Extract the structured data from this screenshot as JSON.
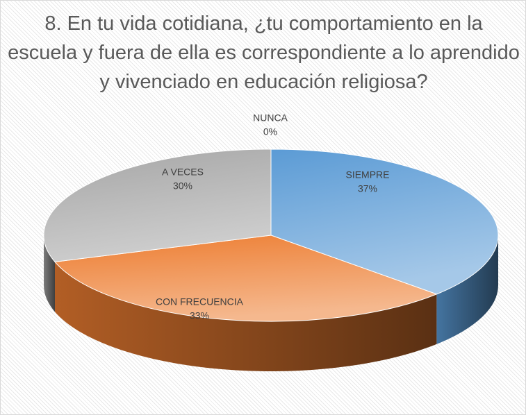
{
  "chart_data": {
    "type": "pie3d",
    "title": "8. En tu vida cotidiana, ¿tu comportamiento en la escuela y fuera de ella es correspondiente a lo aprendido y vivenciado en educación religiosa?",
    "categories": [
      "SIEMPRE",
      "CON FRECUENCIA",
      "A VECES",
      "NUNCA"
    ],
    "values": [
      37,
      33,
      30,
      0
    ],
    "value_labels": [
      "37%",
      "33%",
      "30%",
      "0%"
    ],
    "colors": [
      "#5b9bd5",
      "#ed7d31",
      "#a5a5a5",
      "#ffc000"
    ]
  }
}
